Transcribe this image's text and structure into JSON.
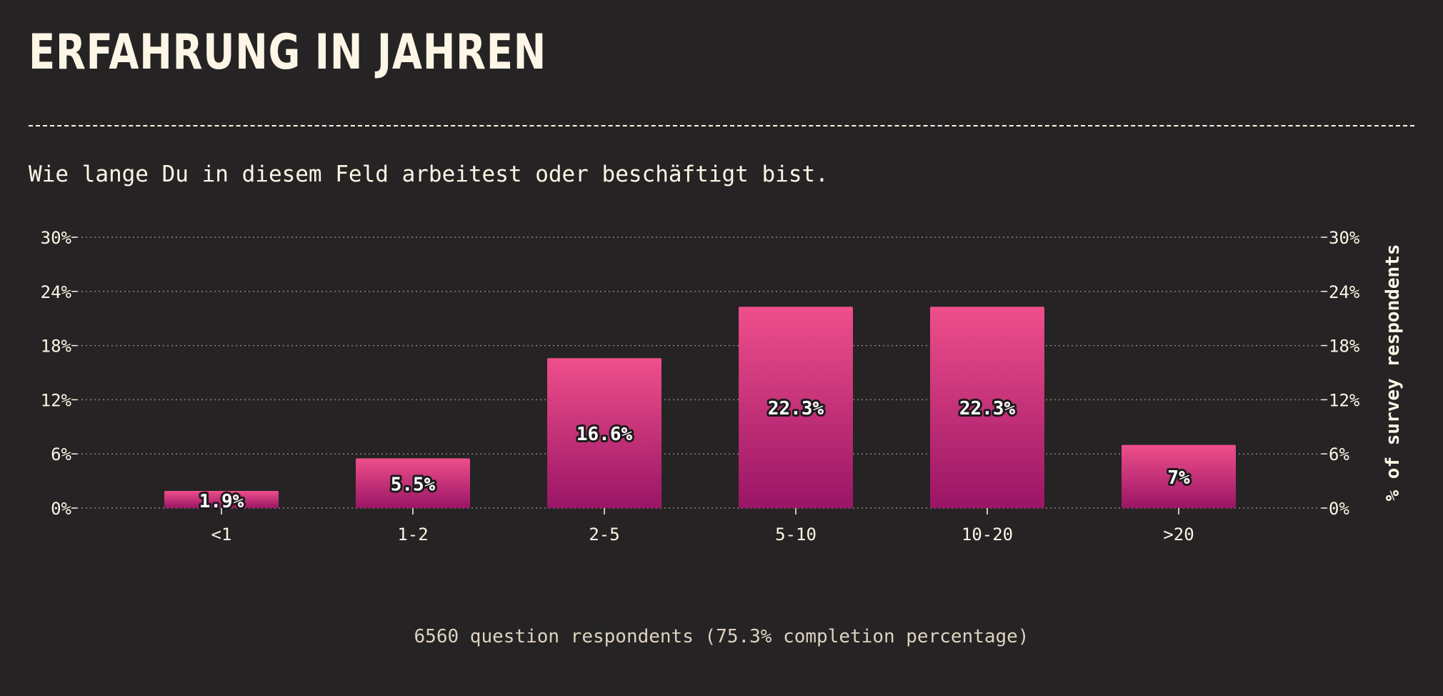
{
  "header": {
    "title": "ERFAHRUNG IN JAHREN",
    "subtitle": "Wie lange Du in diesem Feld arbeitest oder beschäftigt bist."
  },
  "footer": {
    "note": "6560 question respondents (75.3% completion percentage)"
  },
  "colors": {
    "background": "#262324",
    "text": "#fdf6e6",
    "bar_top": "#ef4f8b",
    "bar_bottom": "#9a1566",
    "grid": "#8a8580"
  },
  "chart_data": {
    "type": "bar",
    "categories": [
      "<1",
      "1-2",
      "2-5",
      "5-10",
      "10-20",
      ">20"
    ],
    "values": [
      1.9,
      5.5,
      16.6,
      22.3,
      22.3,
      7
    ],
    "value_labels": [
      "1.9%",
      "5.5%",
      "16.6%",
      "22.3%",
      "22.3%",
      "7%"
    ],
    "ylabel": "% of survey respondents",
    "ylim": [
      0,
      30
    ],
    "yticks": [
      0,
      6,
      12,
      18,
      24,
      30
    ],
    "ytick_labels": [
      "0%",
      "6%",
      "12%",
      "18%",
      "24%",
      "30%"
    ],
    "grid": true
  }
}
